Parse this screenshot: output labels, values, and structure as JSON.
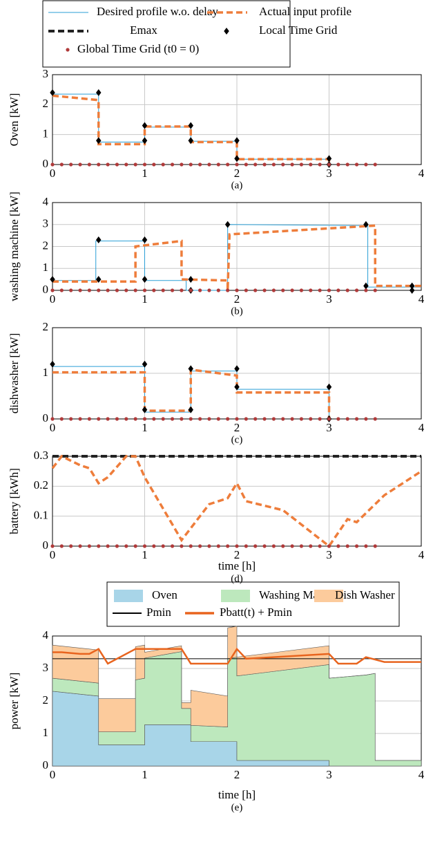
{
  "chart_data": [
    {
      "type": "line",
      "ylabel": "Oven [kW]",
      "caption": "(a)",
      "xlim": [
        0,
        4
      ],
      "ylim": [
        0,
        3
      ],
      "xticks": [
        0,
        1,
        2,
        3,
        4
      ],
      "yticks": [
        0,
        1,
        2,
        3
      ],
      "grid": true,
      "series": [
        {
          "name": "Desired profile w.o. delay",
          "color": "#2a9fd6",
          "style": "solid",
          "x": [
            0,
            0.5,
            0.5,
            1,
            1,
            1.5,
            1.5,
            2,
            2,
            3,
            3
          ],
          "values": [
            2.35,
            2.35,
            0.75,
            0.75,
            1.25,
            1.25,
            0.78,
            0.78,
            0.18,
            0.18,
            0
          ]
        },
        {
          "name": "Actual input profile",
          "color": "#ee7d3b",
          "style": "dashed",
          "x": [
            0,
            0.5,
            0.5,
            1,
            1,
            1.5,
            1.5,
            2,
            2,
            3,
            3
          ],
          "values": [
            2.3,
            2.15,
            0.68,
            0.68,
            1.27,
            1.27,
            0.75,
            0.75,
            0.18,
            0.18,
            0
          ]
        },
        {
          "name": "Local Time Grid",
          "color": "#000000",
          "style": "diamond",
          "x": [
            0,
            0.5,
            0.5,
            1,
            1,
            1.5,
            1.5,
            2,
            2,
            3,
            3
          ],
          "values": [
            2.4,
            2.4,
            0.8,
            0.8,
            1.3,
            1.3,
            0.8,
            0.8,
            0.2,
            0.2,
            0
          ]
        },
        {
          "name": "Global Time Grid (t0 = 0)",
          "color": "#b03a3a",
          "style": "dot",
          "x": [
            0,
            0.1,
            0.2,
            0.3,
            0.4,
            0.5,
            0.6,
            0.7,
            0.8,
            0.9,
            1,
            1.1,
            1.2,
            1.3,
            1.4,
            1.5,
            1.6,
            1.7,
            1.8,
            1.9,
            2,
            2.1,
            2.2,
            2.3,
            2.4,
            2.5,
            2.6,
            2.7,
            2.8,
            2.9,
            3,
            3.1,
            3.2,
            3.3,
            3.4,
            3.5
          ],
          "values": [
            0,
            0,
            0,
            0,
            0,
            0,
            0,
            0,
            0,
            0,
            0,
            0,
            0,
            0,
            0,
            0,
            0,
            0,
            0,
            0,
            0,
            0,
            0,
            0,
            0,
            0,
            0,
            0,
            0,
            0,
            0,
            0,
            0,
            0,
            0,
            0
          ]
        }
      ]
    },
    {
      "type": "line",
      "ylabel": "washing machine [kW]",
      "caption": "(b)",
      "xlim": [
        0,
        4
      ],
      "ylim": [
        0,
        4
      ],
      "xticks": [
        0,
        1,
        2,
        3,
        4
      ],
      "yticks": [
        0,
        1,
        2,
        3,
        4
      ],
      "grid": true,
      "series": [
        {
          "color": "#2a9fd6",
          "style": "solid",
          "x": [
            0,
            0.47,
            0.47,
            1,
            1,
            1.45,
            1.45,
            1.9,
            1.9,
            3.42,
            3.42,
            4
          ],
          "values": [
            0.45,
            0.45,
            2.25,
            2.25,
            0.45,
            0.45,
            0,
            0,
            3.0,
            2.95,
            0.15,
            0.15
          ]
        },
        {
          "color": "#ee7d3b",
          "style": "dashed",
          "x": [
            0,
            0.9,
            0.9,
            1.4,
            1.4,
            1.9,
            1.9,
            1.92,
            3.5,
            3.5,
            4
          ],
          "values": [
            0.4,
            0.4,
            2.0,
            2.25,
            0.5,
            0.45,
            0,
            2.55,
            2.95,
            0.2,
            0.2
          ]
        },
        {
          "color": "#000000",
          "style": "diamond",
          "x": [
            0,
            0.5,
            0.5,
            1,
            1,
            1.5,
            1.5,
            1.9,
            3.4,
            3.4,
            3.9,
            3.9
          ],
          "values": [
            0.5,
            0.5,
            2.3,
            2.3,
            0.5,
            0.5,
            0,
            3,
            3,
            0.2,
            0.2,
            0
          ]
        },
        {
          "color": "#b03a3a",
          "style": "dot",
          "x": [
            0,
            0.1,
            0.2,
            0.3,
            0.4,
            0.5,
            0.6,
            0.7,
            0.8,
            0.9,
            1,
            1.1,
            1.2,
            1.3,
            1.4,
            1.5,
            1.6,
            1.7,
            1.8,
            1.9,
            2,
            2.1,
            2.2,
            2.3,
            2.4,
            2.5,
            2.6,
            2.7,
            2.8,
            2.9,
            3,
            3.1,
            3.2,
            3.3,
            3.4,
            3.5
          ],
          "values": [
            0,
            0,
            0,
            0,
            0,
            0,
            0,
            0,
            0,
            0,
            0,
            0,
            0,
            0,
            0,
            0,
            0,
            0,
            0,
            0,
            0,
            0,
            0,
            0,
            0,
            0,
            0,
            0,
            0,
            0,
            0,
            0,
            0,
            0,
            0,
            0
          ]
        }
      ]
    },
    {
      "type": "line",
      "ylabel": "dishwasher [kW]",
      "caption": "(c)",
      "xlim": [
        0,
        4
      ],
      "ylim": [
        0,
        2
      ],
      "xticks": [
        0,
        1,
        2,
        3,
        4
      ],
      "yticks": [
        0,
        1,
        2
      ],
      "grid": true,
      "series": [
        {
          "color": "#2a9fd6",
          "style": "solid",
          "x": [
            0,
            1,
            1,
            1.5,
            1.5,
            2,
            2,
            3,
            3
          ],
          "values": [
            1.15,
            1.15,
            0.15,
            0.15,
            1.05,
            1.05,
            0.65,
            0.65,
            0
          ]
        },
        {
          "color": "#ee7d3b",
          "style": "dashed",
          "x": [
            0,
            1,
            1,
            1.5,
            1.5,
            2,
            2,
            3,
            3
          ],
          "values": [
            1.02,
            1.02,
            0.18,
            0.18,
            1.08,
            0.95,
            0.58,
            0.58,
            0
          ]
        },
        {
          "color": "#000000",
          "style": "diamond",
          "x": [
            0,
            1,
            1,
            1.5,
            1.5,
            2,
            2,
            3,
            3
          ],
          "values": [
            1.2,
            1.2,
            0.2,
            0.2,
            1.1,
            1.1,
            0.7,
            0.7,
            0
          ]
        },
        {
          "color": "#b03a3a",
          "style": "dot",
          "x": [
            0,
            0.1,
            0.2,
            0.3,
            0.4,
            0.5,
            0.6,
            0.7,
            0.8,
            0.9,
            1,
            1.1,
            1.2,
            1.3,
            1.4,
            1.5,
            1.6,
            1.7,
            1.8,
            1.9,
            2,
            2.1,
            2.2,
            2.3,
            2.4,
            2.5,
            2.6,
            2.7,
            2.8,
            2.9,
            3,
            3.1,
            3.2,
            3.3,
            3.4,
            3.5
          ],
          "values": [
            0,
            0,
            0,
            0,
            0,
            0,
            0,
            0,
            0,
            0,
            0,
            0,
            0,
            0,
            0,
            0,
            0,
            0,
            0,
            0,
            0,
            0,
            0,
            0,
            0,
            0,
            0,
            0,
            0,
            0,
            0,
            0,
            0,
            0,
            0,
            0
          ]
        }
      ]
    },
    {
      "type": "line",
      "ylabel": "battery [kWh]",
      "xlabel": "time [h]",
      "caption": "(d)",
      "xlim": [
        0,
        4
      ],
      "ylim": [
        0,
        0.3
      ],
      "xticks": [
        0,
        1,
        2,
        3,
        4
      ],
      "yticks": [
        0,
        0.1,
        0.2,
        0.3
      ],
      "grid": true,
      "series": [
        {
          "name": "Emax",
          "color": "#222222",
          "style": "thick-dashed",
          "x": [
            0,
            4
          ],
          "values": [
            0.3,
            0.3
          ]
        },
        {
          "color": "#ee7d3b",
          "style": "dashed",
          "x": [
            0,
            0.1,
            0.3,
            0.4,
            0.5,
            0.6,
            0.8,
            0.9,
            1,
            1.4,
            1.7,
            1.9,
            2,
            2.1,
            2.5,
            3,
            3.2,
            3.3,
            3.6,
            4
          ],
          "values": [
            0.26,
            0.3,
            0.27,
            0.26,
            0.21,
            0.23,
            0.3,
            0.3,
            0.23,
            0.02,
            0.14,
            0.16,
            0.21,
            0.15,
            0.12,
            0,
            0.09,
            0.08,
            0.17,
            0.25
          ]
        },
        {
          "color": "#b03a3a",
          "style": "dot",
          "x": [
            0,
            0.1,
            0.2,
            0.3,
            0.4,
            0.5,
            0.6,
            0.7,
            0.8,
            0.9,
            1,
            1.1,
            1.2,
            1.3,
            1.4,
            1.5,
            1.6,
            1.7,
            1.8,
            1.9,
            2,
            2.1,
            2.2,
            2.3,
            2.4,
            2.5,
            2.6,
            2.7,
            2.8,
            2.9,
            3,
            3.1,
            3.2,
            3.3,
            3.4,
            3.5
          ],
          "values": [
            0,
            0,
            0,
            0,
            0,
            0,
            0,
            0,
            0,
            0,
            0,
            0,
            0,
            0,
            0,
            0,
            0,
            0,
            0,
            0,
            0,
            0,
            0,
            0,
            0,
            0,
            0,
            0,
            0,
            0,
            0,
            0,
            0,
            0,
            0,
            0
          ]
        }
      ]
    },
    {
      "type": "area",
      "ylabel": "power [kW]",
      "xlabel": "time [h]",
      "caption": "(e)",
      "xlim": [
        0,
        4
      ],
      "ylim": [
        0,
        4
      ],
      "xticks": [
        0,
        1,
        2,
        3,
        4
      ],
      "yticks": [
        0,
        1,
        2,
        3,
        4
      ],
      "grid": true,
      "series": [
        {
          "name": "Oven",
          "color": "#a8d5e8",
          "style": "area",
          "x": [
            0,
            0.5,
            0.5,
            0.9,
            0.9,
            1,
            1,
            1.4,
            1.4,
            1.5,
            1.5,
            1.9,
            1.9,
            2,
            2,
            3,
            3,
            3.4,
            3.4,
            3.5,
            3.5,
            4
          ],
          "values": [
            2.3,
            2.15,
            0.65,
            0.65,
            0.65,
            0.65,
            1.27,
            1.27,
            1.27,
            1.27,
            0.75,
            0.75,
            0.75,
            0.75,
            0.17,
            0.17,
            0,
            0,
            0,
            0,
            0,
            0
          ]
        },
        {
          "name": "Washing Machine",
          "color": "#bde8bd",
          "style": "area",
          "x": [
            0,
            0.5,
            0.5,
            0.9,
            0.9,
            1,
            1,
            1.4,
            1.4,
            1.5,
            1.5,
            1.9,
            1.9,
            2,
            2,
            3,
            3,
            3.4,
            3.4,
            3.5,
            3.5,
            4
          ],
          "values": [
            0.4,
            0.4,
            0.4,
            0.4,
            2.0,
            2.05,
            2.05,
            2.25,
            0.5,
            0.5,
            0.5,
            0.45,
            2.55,
            2.6,
            2.6,
            2.95,
            2.7,
            2.8,
            2.8,
            2.85,
            0.17,
            0.17
          ]
        },
        {
          "name": "Dish Washer",
          "color": "#fccb9c",
          "style": "area",
          "x": [
            0,
            0.5,
            0.5,
            0.9,
            0.9,
            1,
            1,
            1.4,
            1.4,
            1.5,
            1.5,
            1.9,
            1.9,
            2,
            2,
            3,
            3,
            3.4,
            3.4,
            3.5,
            3.5,
            4
          ],
          "values": [
            1.02,
            1.02,
            1.02,
            1.02,
            1.02,
            1.02,
            0.18,
            0.18,
            0.18,
            0.18,
            1.08,
            0.95,
            0.95,
            0.95,
            0.58,
            0.58,
            0,
            0,
            0,
            0,
            0,
            0
          ]
        },
        {
          "name": "Pmin",
          "color": "#000000",
          "style": "solid",
          "x": [
            0,
            4
          ],
          "values": [
            3.3,
            3.3
          ]
        },
        {
          "name": "Pbatt(t) + Pmin",
          "color": "#e8641e",
          "style": "thick",
          "x": [
            0,
            0.1,
            0.3,
            0.4,
            0.5,
            0.6,
            0.9,
            1,
            1.4,
            1.5,
            1.9,
            2,
            2.1,
            3,
            3.1,
            3.3,
            3.4,
            3.6,
            4
          ],
          "values": [
            3.5,
            3.5,
            3.45,
            3.45,
            3.6,
            3.15,
            3.6,
            3.6,
            3.6,
            3.15,
            3.15,
            3.6,
            3.3,
            3.45,
            3.15,
            3.15,
            3.35,
            3.2,
            3.2
          ]
        }
      ]
    }
  ]
}
